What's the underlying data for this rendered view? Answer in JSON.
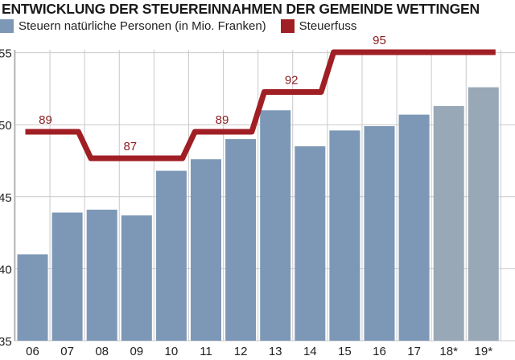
{
  "title": "ENTWICKLUNG DER STEUEREINNAHMEN DER GEMEINDE WETTINGEN",
  "colors": {
    "bar": "#7d98b6",
    "bar_estimate": "#99a8b6",
    "line": "#a01f24",
    "grid": "#c9c9c9"
  },
  "chart_data": {
    "type": "bar",
    "categories": [
      "06",
      "07",
      "08",
      "09",
      "10",
      "11",
      "12",
      "13",
      "14",
      "15",
      "16",
      "17",
      "18*",
      "19*"
    ],
    "series": [
      {
        "name": "Steuern natürliche Personen (in Mio. Franken)",
        "type": "bar",
        "values": [
          41.0,
          43.9,
          44.1,
          43.7,
          46.8,
          47.6,
          49.0,
          51.0,
          48.5,
          49.6,
          49.9,
          50.7,
          51.3,
          52.6
        ],
        "estimated": [
          false,
          false,
          false,
          false,
          false,
          false,
          false,
          false,
          false,
          false,
          false,
          false,
          true,
          true
        ]
      },
      {
        "name": "Steuerfuss",
        "type": "line",
        "values": [
          89,
          89,
          87,
          87,
          87,
          89,
          89,
          92,
          92,
          95,
          95,
          95,
          95,
          95
        ]
      }
    ],
    "data_labels": [
      {
        "category": "06",
        "text": "89"
      },
      {
        "category": "09",
        "text": "87"
      },
      {
        "category": "11",
        "text": "89"
      },
      {
        "category": "13",
        "text": "92"
      },
      {
        "category": "16",
        "text": "95"
      }
    ],
    "y_ticks": [
      "55",
      "50",
      "45",
      "40",
      "35"
    ],
    "ylim": [
      35,
      55.2
    ],
    "grid": true,
    "legend_position": "top-left"
  }
}
